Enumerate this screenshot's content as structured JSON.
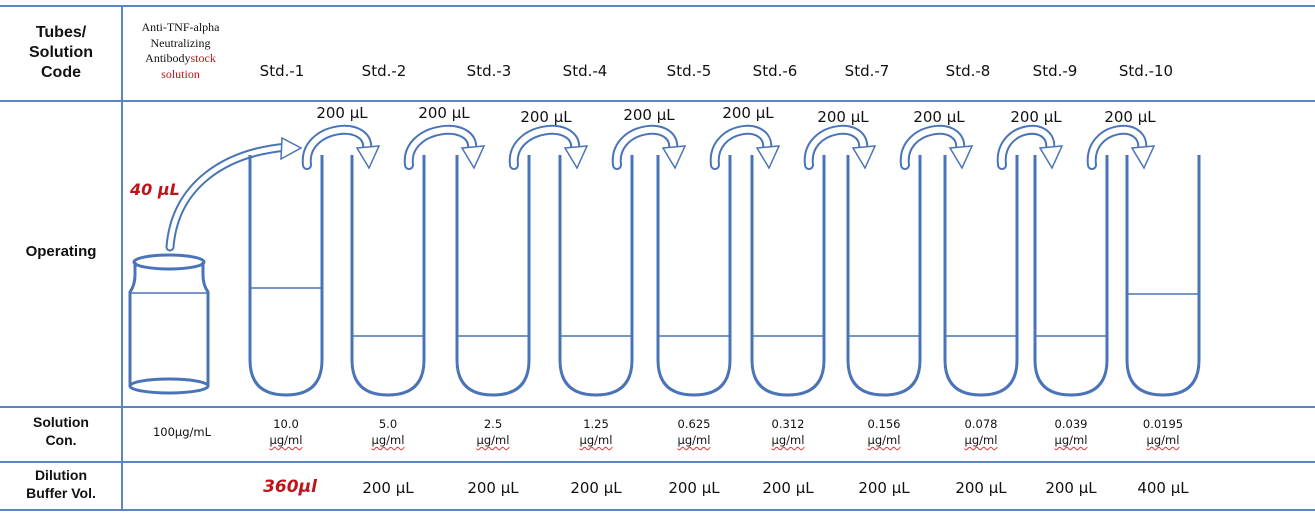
{
  "headers": {
    "tubes_line1": "Tubes/",
    "tubes_line2": "Solution",
    "tubes_line3": "Code",
    "operating": "Operating",
    "solution_line1": "Solution",
    "solution_line2": "Con.",
    "dilution_line1": "Dilution",
    "dilution_line2": "Buffer Vol."
  },
  "stock": {
    "line1": "Anti-TNF-alpha",
    "line2": "Neutralizing",
    "line3_black": "Antibody",
    "line3_red": "stock",
    "line4_red": "solution",
    "initial_transfer": "40 μL",
    "concentration": "100μg/mL"
  },
  "tubes": [
    {
      "code": "Std.-1",
      "transfer": "200 μL",
      "conc_value": "10.0",
      "conc_unit": "μg/ml",
      "buffer": "360μl"
    },
    {
      "code": "Std.-2",
      "transfer": "200 μL",
      "conc_value": "5.0",
      "conc_unit": "μg/ml",
      "buffer": "200 μL"
    },
    {
      "code": "Std.-3",
      "transfer": "200 μL",
      "conc_value": "2.5",
      "conc_unit": "μg/ml",
      "buffer": "200 μL"
    },
    {
      "code": "Std.-4",
      "transfer": "200 μL",
      "conc_value": "1.25",
      "conc_unit": "μg/ml",
      "buffer": "200 μL"
    },
    {
      "code": "Std.-5",
      "transfer": "200 μL",
      "conc_value": "0.625",
      "conc_unit": "μg/ml",
      "buffer": "200 μL"
    },
    {
      "code": "Std.-6",
      "transfer": "200 μL",
      "conc_value": "0.312",
      "conc_unit": "μg/ml",
      "buffer": "200 μL"
    },
    {
      "code": "Std.-7",
      "transfer": "200 μL",
      "conc_value": "0.156",
      "conc_unit": "μg/ml",
      "buffer": "200 μL"
    },
    {
      "code": "Std.-8",
      "transfer": "200 μL",
      "conc_value": "0.078",
      "conc_unit": "μg/ml",
      "buffer": "200 μL"
    },
    {
      "code": "Std.-9",
      "transfer": "200 μL",
      "conc_value": "0.039",
      "conc_unit": "μg/ml",
      "buffer": "200 μL"
    },
    {
      "code": "Std.-10",
      "conc_value": "0.0195",
      "conc_unit": "μg/ml",
      "buffer": "400 μL"
    }
  ],
  "colors": {
    "tube_stroke": "#4a74b8",
    "grid_line": "#5b84c4",
    "arrow_fill": "#ffffff",
    "accent_red": "#c0141a"
  }
}
